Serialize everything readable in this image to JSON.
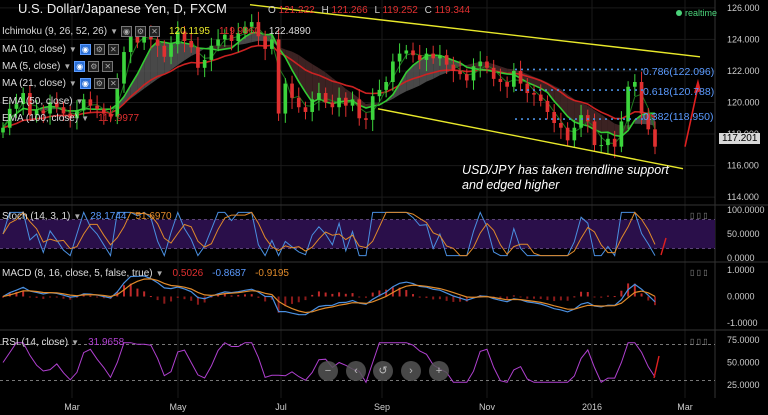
{
  "header": {
    "title": "U.S. Dollar/Japanese Yen, D, FXCM",
    "open_label": "O",
    "open": "121.222",
    "high_label": "H",
    "high": "121.266",
    "low_label": "L",
    "low": "119.252",
    "close_label": "C",
    "close": "119.344",
    "realtime": "realtime"
  },
  "indicators": [
    {
      "label": "Ichimoku (9, 26, 52, 26)",
      "values": [
        "120.1195",
        "119.9960",
        "122.4890"
      ]
    },
    {
      "label": "MA (10, close)",
      "values": []
    },
    {
      "label": "MA (5, close)",
      "values": []
    },
    {
      "label": "MA (21, close)",
      "values": []
    },
    {
      "label": "EMA (50, close)",
      "values": []
    },
    {
      "label": "EMA (100, close)",
      "values": [
        "117.9977"
      ]
    }
  ],
  "fib_labels": [
    "0.786(122.096)",
    "0.618(120.788)",
    "0.382(118.950)"
  ],
  "price_badge": "117.201",
  "annotation": "USD/JPY has taken trendline support and edged higher",
  "colors": {
    "up": "#3cd43c",
    "down": "#e03030",
    "ma_green": "#33cc33",
    "ma_red": "#cc2222",
    "trend": "#e8e82a",
    "fib": "#4a8fe0"
  },
  "chart_data": [
    {
      "type": "line",
      "title": "U.S. Dollar/Japanese Yen, D, FXCM",
      "x_ticks": [
        "Mar",
        "May",
        "Jul",
        "Sep",
        "Nov",
        "2016",
        "Mar"
      ],
      "y_ticks": [
        "126.000",
        "124.000",
        "122.000",
        "120.000",
        "118.000",
        "116.000",
        "114.000"
      ],
      "ylim": [
        113.5,
        126.5
      ],
      "series": [
        {
          "values": [
            118.4,
            119.6,
            119.9,
            120.6,
            119.2,
            119.5,
            119.3,
            120.0,
            119.7,
            119.3,
            119.0,
            119.5,
            120.2,
            119.8,
            119.6,
            119.3,
            119.1,
            121.2,
            123.2,
            124.2,
            123.8,
            124.4,
            124.0,
            123.6,
            122.9,
            123.7,
            124.5,
            123.9,
            123.5,
            122.2,
            122.7,
            123.6,
            124.0,
            124.3,
            123.9,
            124.4,
            124.8,
            125.1,
            124.2,
            123.4,
            124.0,
            119.3,
            121.2,
            120.3,
            119.7,
            119.4,
            120.2,
            120.6,
            120.0,
            119.7,
            120.3,
            119.8,
            120.2,
            119.0,
            118.9,
            120.4,
            120.8,
            121.3,
            122.6,
            123.1,
            123.3,
            123.0,
            122.7,
            123.1,
            122.8,
            123.0,
            122.4,
            122.0,
            121.8,
            121.4,
            122.3,
            122.6,
            122.2,
            121.5,
            121.3,
            121.0,
            122.0,
            121.2,
            120.6,
            120.5,
            120.1,
            119.4,
            118.7,
            118.4,
            117.6,
            118.4,
            119.2,
            118.8,
            117.3,
            117.3,
            117.7,
            117.2,
            118.8,
            121.0,
            121.3,
            119.3,
            118.3,
            117.2
          ]
        }
      ]
    },
    {
      "type": "line",
      "title": "Stoch (14, 3, 1)",
      "values_shown": [
        "28.1744",
        "51.6970"
      ],
      "y_ticks": [
        "100.0000",
        "50.0000",
        "0.0000"
      ]
    },
    {
      "type": "bar",
      "title": "MACD (8, 16, close, 5, false, true)",
      "values_shown": [
        "0.5026",
        "-0.8687",
        "-0.9195"
      ],
      "y_ticks": [
        "1.0000",
        "0.0000",
        "-1.0000"
      ]
    },
    {
      "type": "line",
      "title": "RSI (14, close)",
      "values_shown": [
        "31.9658"
      ],
      "y_ticks": [
        "75.0000",
        "50.0000",
        "25.0000"
      ]
    }
  ]
}
